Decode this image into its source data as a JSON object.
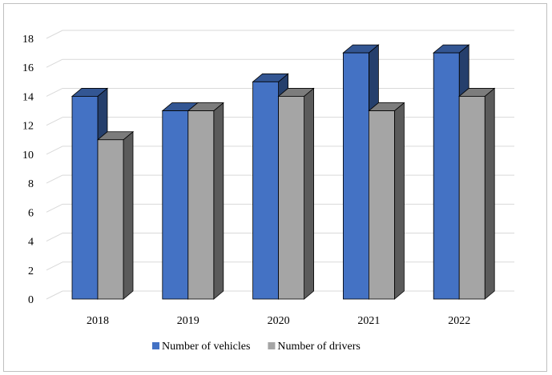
{
  "chart_data": {
    "type": "bar",
    "style": "3d-clustered-column",
    "categories": [
      "2018",
      "2019",
      "2020",
      "2021",
      "2022"
    ],
    "series": [
      {
        "name": "Number of vehicles",
        "values": [
          14,
          13,
          15,
          17,
          17
        ],
        "color": "#4472c4"
      },
      {
        "name": "Number of drivers",
        "values": [
          11,
          13,
          14,
          13,
          14
        ],
        "color": "#a5a5a5"
      }
    ],
    "ylim": [
      0,
      18
    ],
    "yticks": [
      "0",
      "2",
      "4",
      "6",
      "8",
      "10",
      "12",
      "14",
      "16",
      "18"
    ],
    "grid": true,
    "legend_position": "bottom",
    "title": "",
    "xlabel": "",
    "ylabel": ""
  }
}
